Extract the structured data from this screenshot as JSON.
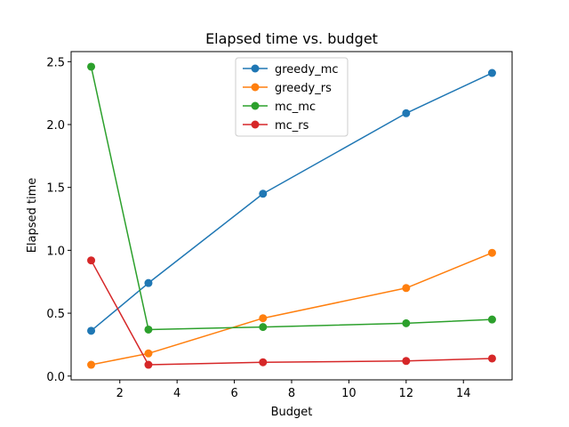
{
  "chart_data": {
    "type": "line",
    "title": "Elapsed time vs. budget",
    "xlabel": "Budget",
    "ylabel": "Elapsed time",
    "x": [
      1,
      3,
      7,
      12,
      15
    ],
    "xlim": [
      0.3,
      15.7
    ],
    "ylim": [
      -0.03,
      2.58
    ],
    "xticks": [
      "2",
      "4",
      "6",
      "8",
      "10",
      "12",
      "14"
    ],
    "yticks": [
      "0.0",
      "0.5",
      "1.0",
      "1.5",
      "2.0",
      "2.5"
    ],
    "grid": false,
    "legend_position": "top-center",
    "series": [
      {
        "name": "greedy_mc",
        "color": "#1f77b4",
        "values": [
          0.36,
          0.74,
          1.45,
          2.09,
          2.41
        ]
      },
      {
        "name": "greedy_rs",
        "color": "#ff7f0e",
        "values": [
          0.09,
          0.18,
          0.46,
          0.7,
          0.98
        ]
      },
      {
        "name": "mc_mc",
        "color": "#2ca02c",
        "values": [
          2.46,
          0.37,
          0.39,
          0.42,
          0.45
        ]
      },
      {
        "name": "mc_rs",
        "color": "#d62728",
        "values": [
          0.92,
          0.09,
          0.11,
          0.12,
          0.14
        ]
      }
    ]
  }
}
